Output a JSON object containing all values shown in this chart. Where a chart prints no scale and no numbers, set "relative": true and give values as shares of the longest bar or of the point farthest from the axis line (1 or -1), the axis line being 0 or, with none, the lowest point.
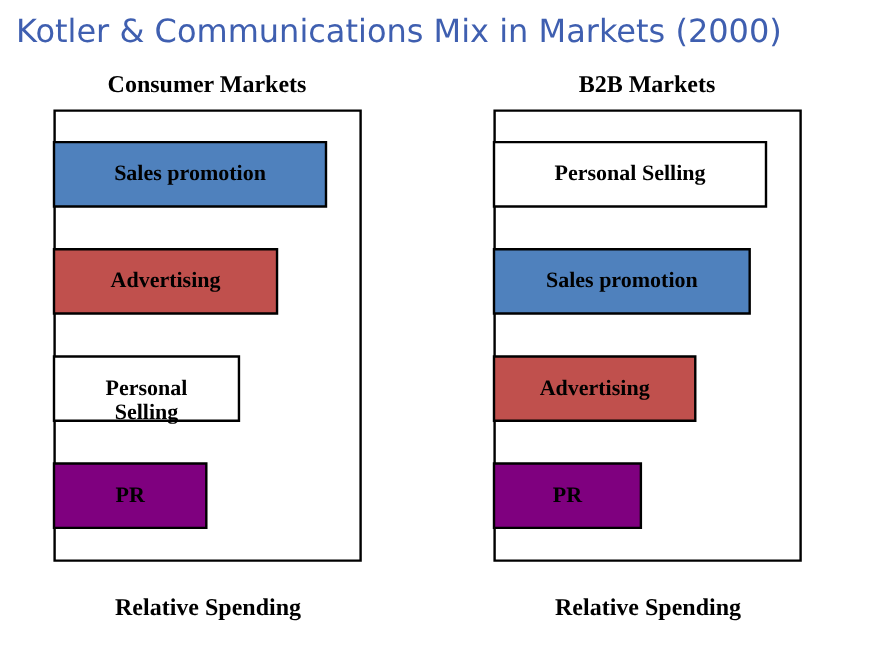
{
  "chart_data": [
    {
      "type": "bar",
      "orientation": "horizontal",
      "relative": true,
      "title": "Consumer Markets",
      "xlabel": "Relative Spending",
      "annotations": [
        "Kotler & Communications Mix in Markets (2000)"
      ],
      "categories": [
        "Sales promotion",
        "Advertising",
        "Personal\nSelling",
        "PR"
      ],
      "values": [
        1,
        0.82,
        0.68,
        0.56
      ],
      "colors": [
        "#4f81bd",
        "#c0504d",
        "#ffffff",
        "#7f007f"
      ],
      "legend": false
    },
    {
      "type": "bar",
      "orientation": "horizontal",
      "relative": true,
      "title": "B2B Markets",
      "xlabel": "Relative Spending",
      "categories": [
        "Personal Selling",
        "Sales promotion",
        "Advertising",
        "PR"
      ],
      "values": [
        1,
        0.94,
        0.74,
        0.54
      ],
      "colors": [
        "#ffffff",
        "#4f81bd",
        "#c0504d",
        "#7f007f"
      ],
      "legend": false
    }
  ]
}
